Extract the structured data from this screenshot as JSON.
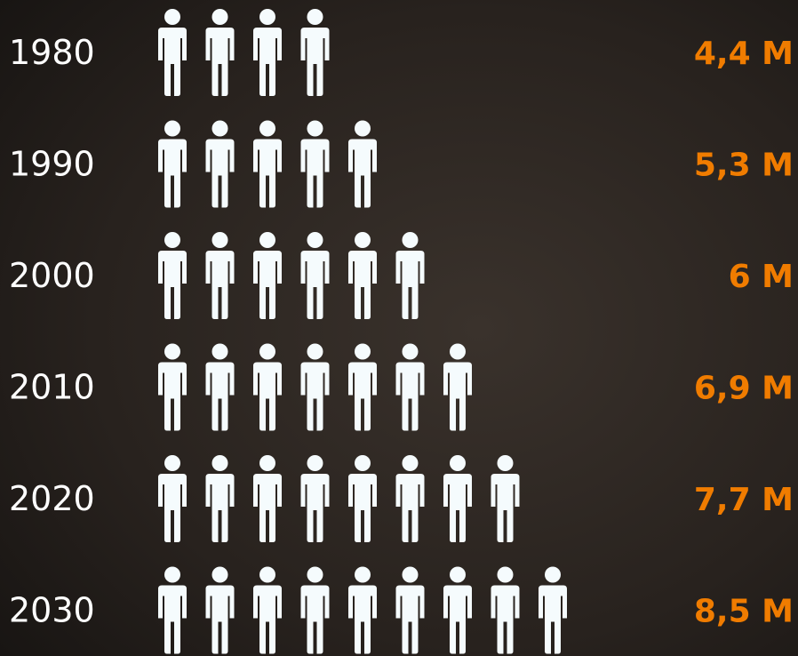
{
  "chart_data": {
    "type": "pictograph",
    "categories": [
      "1980",
      "1990",
      "2000",
      "2010",
      "2020",
      "2030"
    ],
    "values": [
      4.4,
      5.3,
      6,
      6.9,
      7.7,
      8.5
    ],
    "value_labels": [
      "4,4 M",
      "5,3 M",
      "6 M",
      "6,9 M",
      "7,7 M",
      "8,5 M"
    ],
    "color": "#f5fbfd",
    "label_color": "#f07c00"
  }
}
